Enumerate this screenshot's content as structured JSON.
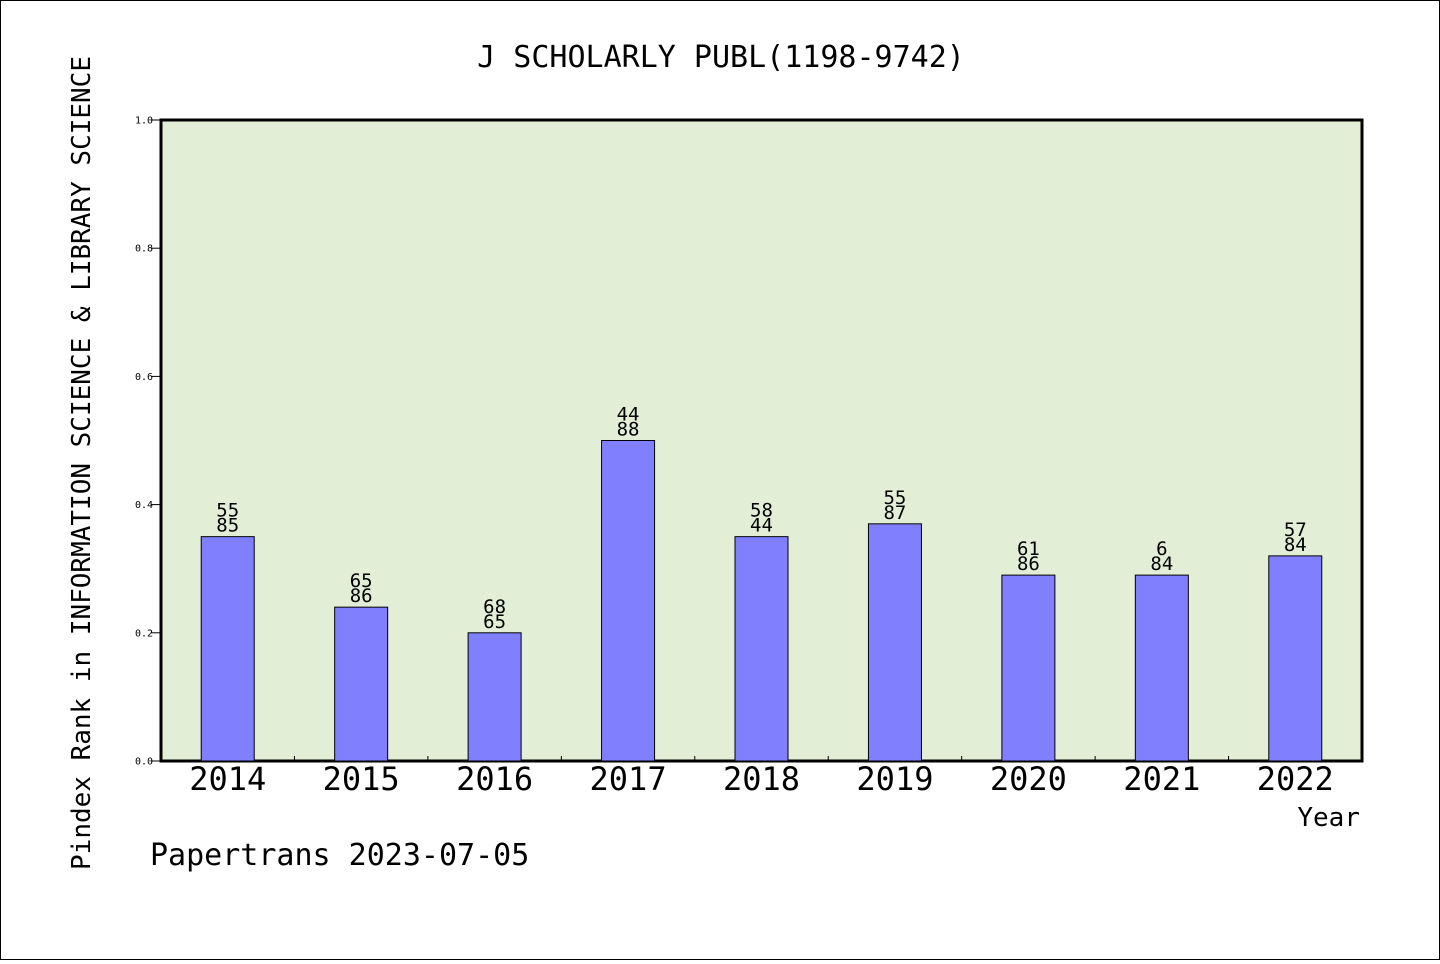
{
  "chart_data": {
    "type": "bar",
    "title": "J SCHOLARLY PUBL(1198-9742)",
    "xlabel": "Year",
    "ylabel": "Pindex Rank in INFORMATION SCIENCE & LIBRARY SCIENCE",
    "categories": [
      "2014",
      "2015",
      "2016",
      "2017",
      "2018",
      "2019",
      "2020",
      "2021",
      "2022"
    ],
    "values": [
      0.35,
      0.24,
      0.2,
      0.5,
      0.35,
      0.37,
      0.29,
      0.29,
      0.32
    ],
    "label_top": [
      "55",
      "65",
      "68",
      "44",
      "58",
      "55",
      "61",
      "6",
      "57"
    ],
    "label_bottom": [
      "85",
      "86",
      "65",
      "88",
      "44",
      "87",
      "86",
      "84",
      "84"
    ],
    "ylim": [
      0,
      1.0
    ],
    "yticks": [
      "0.0",
      "0.2",
      "0.4",
      "0.6",
      "0.8",
      "1.0"
    ],
    "grid": false,
    "colors": {
      "bar": "#8080ff",
      "plot_background": "#e2efd6"
    }
  },
  "footer": "Papertrans 2023-07-05"
}
